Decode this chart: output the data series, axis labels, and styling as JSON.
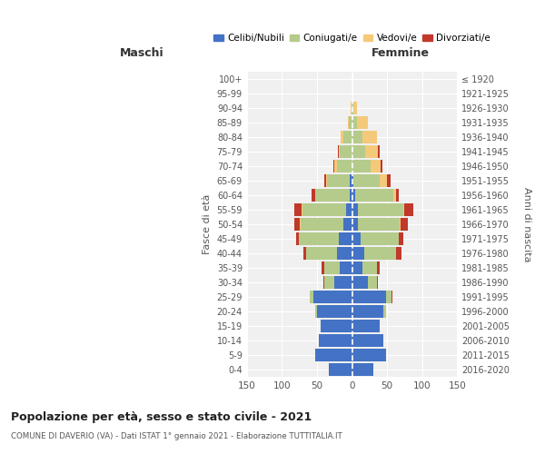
{
  "age_groups_display": [
    "0-4",
    "5-9",
    "10-14",
    "15-19",
    "20-24",
    "25-29",
    "30-34",
    "35-39",
    "40-44",
    "45-49",
    "50-54",
    "55-59",
    "60-64",
    "65-69",
    "70-74",
    "75-79",
    "80-84",
    "85-89",
    "90-94",
    "95-99",
    "100+"
  ],
  "birth_years_display": [
    "2016-2020",
    "2011-2015",
    "2006-2010",
    "2001-2005",
    "1996-2000",
    "1991-1995",
    "1986-1990",
    "1981-1985",
    "1976-1980",
    "1971-1975",
    "1966-1970",
    "1961-1965",
    "1956-1960",
    "1951-1955",
    "1946-1950",
    "1941-1945",
    "1936-1940",
    "1931-1935",
    "1926-1930",
    "1921-1925",
    "≤ 1920"
  ],
  "male": {
    "celibi": [
      33,
      52,
      48,
      45,
      50,
      55,
      25,
      17,
      22,
      19,
      13,
      9,
      3,
      4,
      0,
      0,
      0,
      0,
      0,
      0,
      0
    ],
    "coniugati": [
      0,
      0,
      0,
      0,
      2,
      5,
      15,
      22,
      43,
      57,
      60,
      62,
      50,
      32,
      22,
      17,
      13,
      5,
      1,
      0,
      0
    ],
    "vedovi": [
      0,
      0,
      0,
      0,
      0,
      0,
      0,
      0,
      0,
      0,
      1,
      1,
      0,
      1,
      4,
      2,
      3,
      1,
      1,
      0,
      0
    ],
    "divorziati": [
      0,
      0,
      0,
      0,
      0,
      1,
      1,
      5,
      4,
      4,
      9,
      11,
      5,
      2,
      1,
      1,
      0,
      0,
      0,
      0,
      0
    ]
  },
  "female": {
    "nubili": [
      30,
      48,
      45,
      40,
      45,
      48,
      22,
      15,
      18,
      12,
      8,
      8,
      4,
      2,
      1,
      0,
      0,
      0,
      0,
      0,
      0
    ],
    "coniugate": [
      0,
      0,
      0,
      0,
      4,
      8,
      14,
      20,
      45,
      55,
      60,
      65,
      55,
      38,
      26,
      19,
      15,
      7,
      2,
      0,
      0
    ],
    "vedove": [
      0,
      0,
      0,
      0,
      0,
      0,
      0,
      0,
      0,
      0,
      1,
      2,
      4,
      10,
      14,
      18,
      20,
      15,
      5,
      0,
      1
    ],
    "divorziate": [
      0,
      0,
      0,
      0,
      0,
      1,
      1,
      4,
      8,
      6,
      10,
      12,
      4,
      5,
      2,
      2,
      1,
      1,
      0,
      0,
      0
    ]
  },
  "colors": {
    "celibi": "#4472c4",
    "coniugati": "#b5cb8b",
    "vedovi": "#f5c97a",
    "divorziati": "#c0392b"
  },
  "xlim": 150,
  "title": "Popolazione per età, sesso e stato civile - 2021",
  "subtitle": "COMUNE DI DAVERIO (VA) - Dati ISTAT 1° gennaio 2021 - Elaborazione TUTTITALIA.IT",
  "ylabel_left": "Fasce di età",
  "ylabel_right": "Anni di nascita",
  "xlabel_male": "Maschi",
  "xlabel_female": "Femmine",
  "bg_color": "#f0f0f0",
  "grid_color": "#cccccc"
}
